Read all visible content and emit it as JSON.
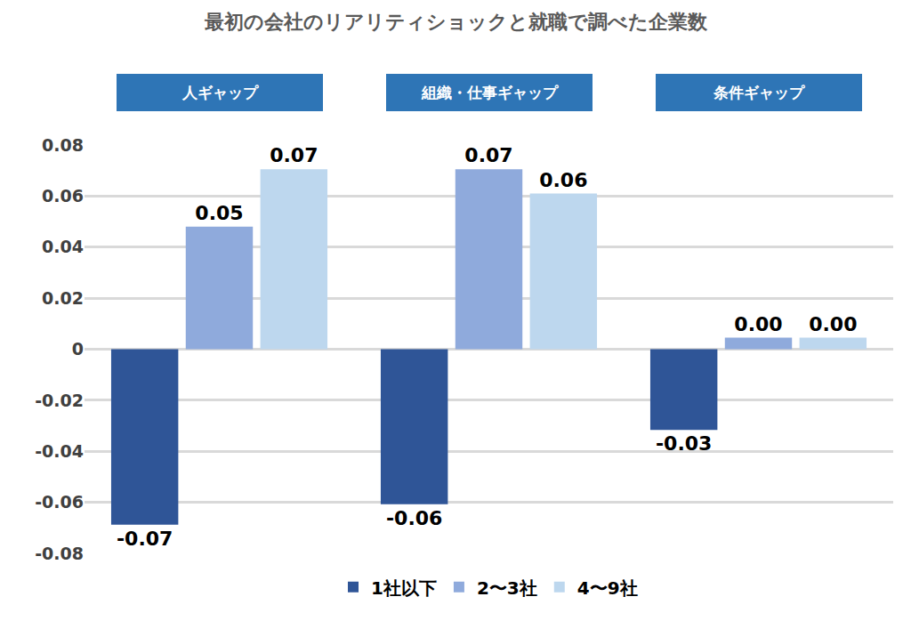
{
  "chart_data": {
    "type": "bar",
    "title": "最初の会社のリアリティショックと就職で調べた企業数",
    "categories": [
      "人ギャップ",
      "組織・仕事ギャップ",
      "条件ギャップ"
    ],
    "series": [
      {
        "name": "1社以下",
        "color": "#2f5597",
        "values": [
          -0.0688,
          -0.0607,
          -0.0316
        ],
        "value_labels": [
          "-0.07",
          "-0.06",
          "-0.03"
        ]
      },
      {
        "name": "2〜3社",
        "color": "#8faadc",
        "values": [
          0.048,
          0.0705,
          0.0045
        ],
        "value_labels": [
          "0.05",
          "0.07",
          "0.00"
        ]
      },
      {
        "name": "4〜9社",
        "color": "#bdd7ee",
        "values": [
          0.0705,
          0.061,
          0.0045
        ],
        "value_labels": [
          "0.07",
          "0.06",
          "0.00"
        ]
      }
    ],
    "ylim": [
      -0.08,
      0.08
    ],
    "yticks": [
      -0.08,
      -0.06,
      -0.04,
      -0.02,
      0,
      0.02,
      0.04,
      0.06,
      0.08
    ],
    "grid": true,
    "legend": "bottom",
    "data_labels": true,
    "tick_labels": "y"
  }
}
